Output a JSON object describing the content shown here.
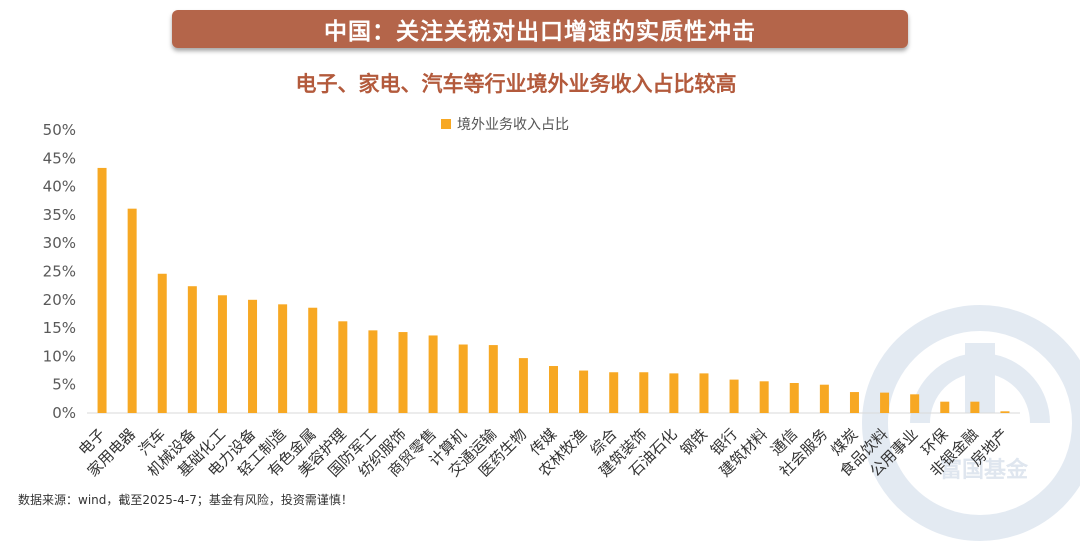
{
  "banner": {
    "title": "中国：关注关税对出口增速的实质性冲击"
  },
  "chart_data": {
    "type": "bar",
    "title": "电子、家电、汽车等行业境外业务收入占比较高",
    "legend": {
      "label": "境外业务收入占比",
      "position": "top"
    },
    "series": [
      {
        "name": "境外业务收入占比",
        "color": "#f7a823"
      }
    ],
    "ylim": [
      0,
      50
    ],
    "yticks": [
      "0%",
      "5%",
      "10%",
      "15%",
      "20%",
      "25%",
      "30%",
      "35%",
      "40%",
      "45%",
      "50%"
    ],
    "categories": [
      "电子",
      "家用电器",
      "汽车",
      "机械设备",
      "基础化工",
      "电力设备",
      "轻工制造",
      "有色金属",
      "美容护理",
      "国防军工",
      "纺织服饰",
      "商贸零售",
      "计算机",
      "交通运输",
      "医药生物",
      "传媒",
      "农林牧渔",
      "综合",
      "建筑装饰",
      "石油石化",
      "钢铁",
      "银行",
      "建筑材料",
      "通信",
      "社会服务",
      "煤炭",
      "食品饮料",
      "公用事业",
      "环保",
      "非银金融",
      "房地产"
    ],
    "values": [
      43.3,
      36.1,
      24.6,
      22.4,
      20.8,
      20.0,
      19.2,
      18.6,
      16.2,
      14.6,
      14.3,
      13.7,
      12.1,
      12.0,
      9.7,
      8.3,
      7.5,
      7.2,
      7.2,
      7.0,
      7.0,
      5.9,
      5.6,
      5.3,
      5.0,
      3.7,
      3.6,
      3.3,
      2.0,
      2.0,
      0.3
    ],
    "grid": false
  },
  "watermark": {
    "text": "富国基金"
  },
  "footer": {
    "source": "数据来源：wind，截至2025-4-7；基金有风险，投资需谨慎！"
  }
}
